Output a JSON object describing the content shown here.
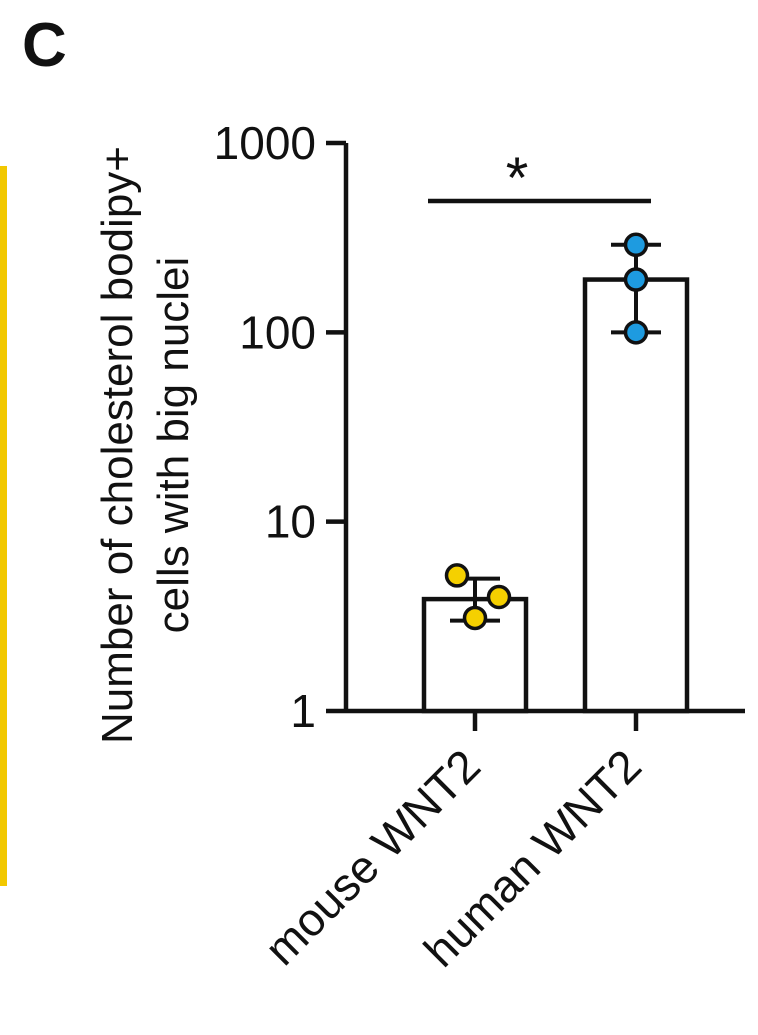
{
  "panel_label": "C",
  "colors": {
    "axis": "#111111",
    "bar_fill": "#ffffff",
    "mouse_points": "#f5d000",
    "human_points": "#1e9be0",
    "left_rule": "#f2c800"
  },
  "chart_data": {
    "type": "bar",
    "scale": "log",
    "title": "",
    "ylabel_lines": [
      "Number of cholesterol bodipy+",
      "cells with big nuclei"
    ],
    "xlabel": "",
    "categories": [
      "mouse WNT2",
      "human WNT2"
    ],
    "yticks": [
      1,
      10,
      100,
      1000
    ],
    "ytick_labels": [
      "1",
      "10",
      "100",
      "1000"
    ],
    "ylim": [
      1,
      1000
    ],
    "grid": false,
    "legend": "none",
    "series": [
      {
        "values": [
          3.9,
          190
        ],
        "error_low": [
          3.0,
          100
        ],
        "error_high": [
          5.0,
          290
        ],
        "points": [
          [
            5.2,
            4.0,
            3.1
          ],
          [
            290,
            190,
            100
          ]
        ]
      }
    ],
    "significance": {
      "label": "*",
      "between": [
        "mouse WNT2",
        "human WNT2"
      ]
    }
  }
}
